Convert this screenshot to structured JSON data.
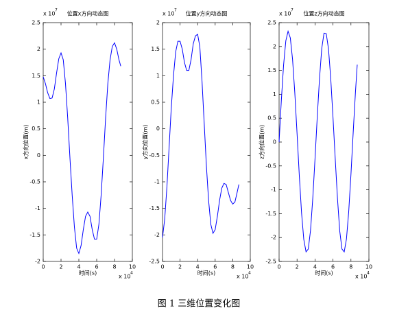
{
  "caption": "图 1  三维位置变化图",
  "chart_data": [
    {
      "type": "line",
      "title": "位置x方向动态图",
      "xlabel": "时间(s)",
      "ylabel": "x方向位置(m)",
      "x_multiplier": "x 10",
      "x_exponent": "4",
      "y_multiplier": "x 10",
      "y_exponent": "7",
      "color": "#0000ff",
      "x": [
        0,
        0.25,
        0.5,
        0.75,
        1,
        1.25,
        1.5,
        1.75,
        2,
        2.25,
        2.5,
        2.75,
        3,
        3.25,
        3.5,
        3.75,
        4,
        4.25,
        4.5,
        4.75,
        5,
        5.25,
        5.5,
        5.75,
        6,
        6.25,
        6.5,
        6.75,
        7,
        7.25,
        7.5,
        7.75,
        8,
        8.25,
        8.5,
        8.7
      ],
      "values": [
        1.48,
        1.35,
        1.18,
        1.07,
        1.08,
        1.25,
        1.55,
        1.82,
        1.93,
        1.8,
        1.35,
        0.7,
        -0.05,
        -0.75,
        -1.35,
        -1.75,
        -1.85,
        -1.7,
        -1.4,
        -1.15,
        -1.07,
        -1.15,
        -1.4,
        -1.58,
        -1.58,
        -1.3,
        -0.75,
        -0.05,
        0.7,
        1.35,
        1.8,
        2.05,
        2.12,
        2.0,
        1.8,
        1.68
      ],
      "xlim": [
        0,
        10
      ],
      "xticks": [
        0,
        2,
        4,
        6,
        8,
        10
      ],
      "ylim": [
        -2,
        2.5
      ],
      "yticks": [
        -2,
        -1.5,
        -1,
        -0.5,
        0,
        0.5,
        1,
        1.5,
        2,
        2.5
      ]
    },
    {
      "type": "line",
      "title": "位置y方向动态图",
      "xlabel": "时间(s)",
      "ylabel": "y方向位置(m)",
      "x_multiplier": "x 10",
      "x_exponent": "4",
      "y_multiplier": "x 10",
      "y_exponent": "7",
      "color": "#0000ff",
      "x": [
        0,
        0.25,
        0.5,
        0.75,
        1,
        1.25,
        1.5,
        1.75,
        2,
        2.25,
        2.5,
        2.75,
        3,
        3.25,
        3.5,
        3.75,
        4,
        4.25,
        4.5,
        4.75,
        5,
        5.25,
        5.5,
        5.75,
        6,
        6.25,
        6.5,
        6.75,
        7,
        7.25,
        7.5,
        7.75,
        8,
        8.25,
        8.5,
        8.7
      ],
      "values": [
        -2.05,
        -1.7,
        -1.1,
        -0.35,
        0.4,
        1.0,
        1.45,
        1.65,
        1.65,
        1.5,
        1.25,
        1.1,
        1.1,
        1.3,
        1.6,
        1.75,
        1.78,
        1.55,
        0.9,
        0.1,
        -0.7,
        -1.35,
        -1.8,
        -1.97,
        -1.9,
        -1.65,
        -1.35,
        -1.12,
        -1.03,
        -1.05,
        -1.2,
        -1.35,
        -1.42,
        -1.38,
        -1.2,
        -1.05
      ],
      "xlim": [
        0,
        10
      ],
      "xticks": [
        0,
        2,
        4,
        6,
        8,
        10
      ],
      "ylim": [
        -2.5,
        2
      ],
      "yticks": [
        -2.5,
        -2,
        -1.5,
        -1,
        -0.5,
        0,
        0.5,
        1,
        1.5,
        2
      ]
    },
    {
      "type": "line",
      "title": "位置z方向动态图",
      "xlabel": "时间(s)",
      "ylabel": "z方向位置(m)",
      "x_multiplier": "x 10",
      "x_exponent": "4",
      "y_multiplier": "x 10",
      "y_exponent": "7",
      "color": "#0000ff",
      "x": [
        0,
        0.25,
        0.5,
        0.75,
        1,
        1.25,
        1.5,
        1.75,
        2,
        2.25,
        2.5,
        2.75,
        3,
        3.25,
        3.5,
        3.75,
        4,
        4.25,
        4.5,
        4.75,
        5,
        5.25,
        5.5,
        5.75,
        6,
        6.25,
        6.5,
        6.75,
        7,
        7.25,
        7.5,
        7.75,
        8,
        8.25,
        8.5,
        8.7
      ],
      "values": [
        0,
        0.87,
        1.61,
        2.12,
        2.32,
        2.18,
        1.73,
        1.03,
        0.18,
        -0.7,
        -1.48,
        -2.04,
        -2.3,
        -2.24,
        -1.85,
        -1.18,
        -0.35,
        0.53,
        1.33,
        1.96,
        2.28,
        2.27,
        1.95,
        1.33,
        0.52,
        -0.35,
        -1.18,
        -1.86,
        -2.24,
        -2.3,
        -2.03,
        -1.46,
        -0.68,
        0.2,
        1.04,
        1.62
      ],
      "xlim": [
        0,
        10
      ],
      "xticks": [
        0,
        2,
        4,
        6,
        8,
        10
      ],
      "ylim": [
        -2.5,
        2.5
      ],
      "yticks": [
        -2.5,
        -2,
        -1.5,
        -1,
        -0.5,
        0,
        0.5,
        1,
        1.5,
        2,
        2.5
      ]
    }
  ]
}
